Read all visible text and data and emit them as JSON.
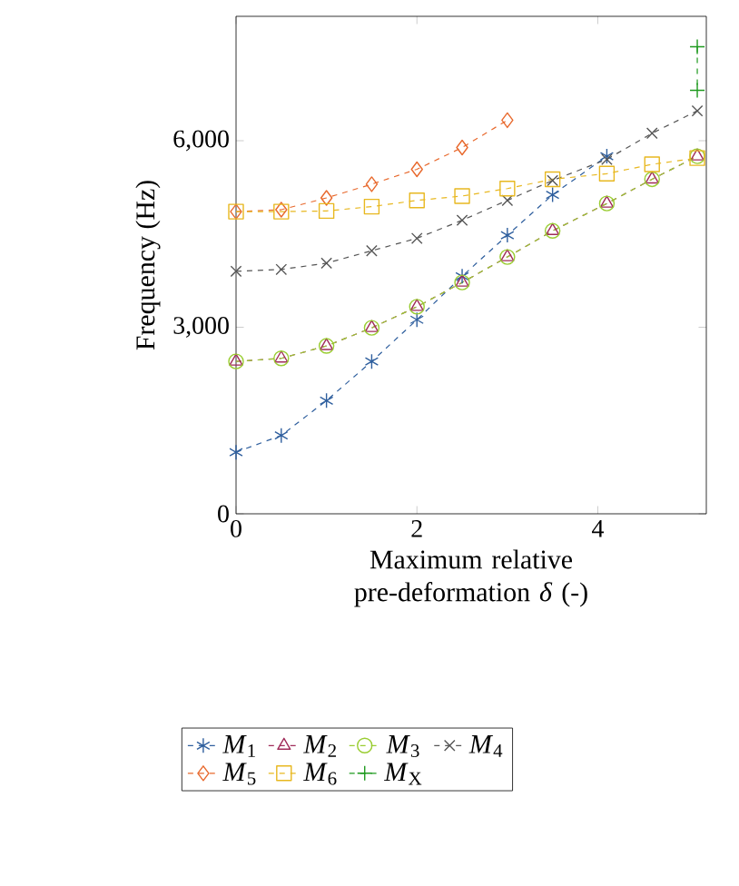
{
  "chart_data": {
    "type": "line",
    "xlabel": "Maximum relative pre-deformation *δ* (-)",
    "ylabel": "Frequency (Hz)",
    "xlim": [
      0,
      5.2
    ],
    "ylim": [
      0,
      8000
    ],
    "xticks": [
      0,
      2,
      4
    ],
    "yticks": [
      0,
      {
        "value": 3000,
        "label": "3,000"
      },
      {
        "value": 6000,
        "label": "6,000"
      }
    ],
    "grid": false,
    "legend": "bottom",
    "line_style": "dashed",
    "series": [
      {
        "name": "*M*$_{1}$",
        "color": "#2f5f9e",
        "marker": "cross",
        "x": [
          0,
          0.5,
          1,
          1.5,
          2,
          2.5,
          3,
          3.5,
          4.1
        ],
        "values": [
          990,
          1260,
          1820,
          2450,
          3120,
          3820,
          4480,
          5130,
          5750
        ]
      },
      {
        "name": "*M*$_{2}$",
        "color": "#a02c5a",
        "marker": "triangle",
        "x": [
          0,
          0.5,
          1,
          1.5,
          2,
          2.5,
          3,
          3.5,
          4.1,
          4.6,
          5.1
        ],
        "values": [
          2450,
          2500,
          2700,
          2990,
          3330,
          3720,
          4130,
          4550,
          4990,
          5380,
          5750
        ]
      },
      {
        "name": "*M*$_{3}$",
        "color": "#9acd32",
        "marker": "circle",
        "x": [
          0,
          0.5,
          1,
          1.5,
          2,
          2.5,
          3,
          3.5,
          4.1,
          4.6,
          5.1
        ],
        "values": [
          2450,
          2500,
          2700,
          2990,
          3330,
          3720,
          4130,
          4550,
          4990,
          5380,
          5750
        ]
      },
      {
        "name": "*M*$_{4}$",
        "color": "#555555",
        "marker": "cross",
        "x": [
          0,
          0.5,
          1,
          1.5,
          2,
          2.5,
          3,
          3.5,
          4.1,
          4.6,
          5.1
        ],
        "values": [
          3900,
          3930,
          4030,
          4230,
          4430,
          4720,
          5040,
          5360,
          5700,
          6120,
          6480
        ]
      },
      {
        "name": "*M*$_{5}$",
        "color": "#e8692d",
        "marker": "diamond",
        "x": [
          0,
          0.5,
          1,
          1.5,
          2,
          2.5,
          3
        ],
        "values": [
          4860,
          4890,
          5080,
          5300,
          5540,
          5890,
          6330
        ]
      },
      {
        "name": "*M*$_{6}$",
        "color": "#e8b820",
        "marker": "square",
        "x": [
          0,
          0.5,
          1,
          1.5,
          2,
          2.5,
          3,
          3.5,
          4.1,
          4.6,
          5.1
        ],
        "values": [
          4860,
          4860,
          4870,
          4940,
          5040,
          5110,
          5230,
          5380,
          5470,
          5620,
          5720
        ]
      },
      {
        "name": "*M*$_{X}$",
        "color": "#1f9a1f",
        "marker": "plus",
        "x": [
          5.1,
          5.1
        ],
        "values": [
          7510,
          6810
        ]
      }
    ]
  }
}
